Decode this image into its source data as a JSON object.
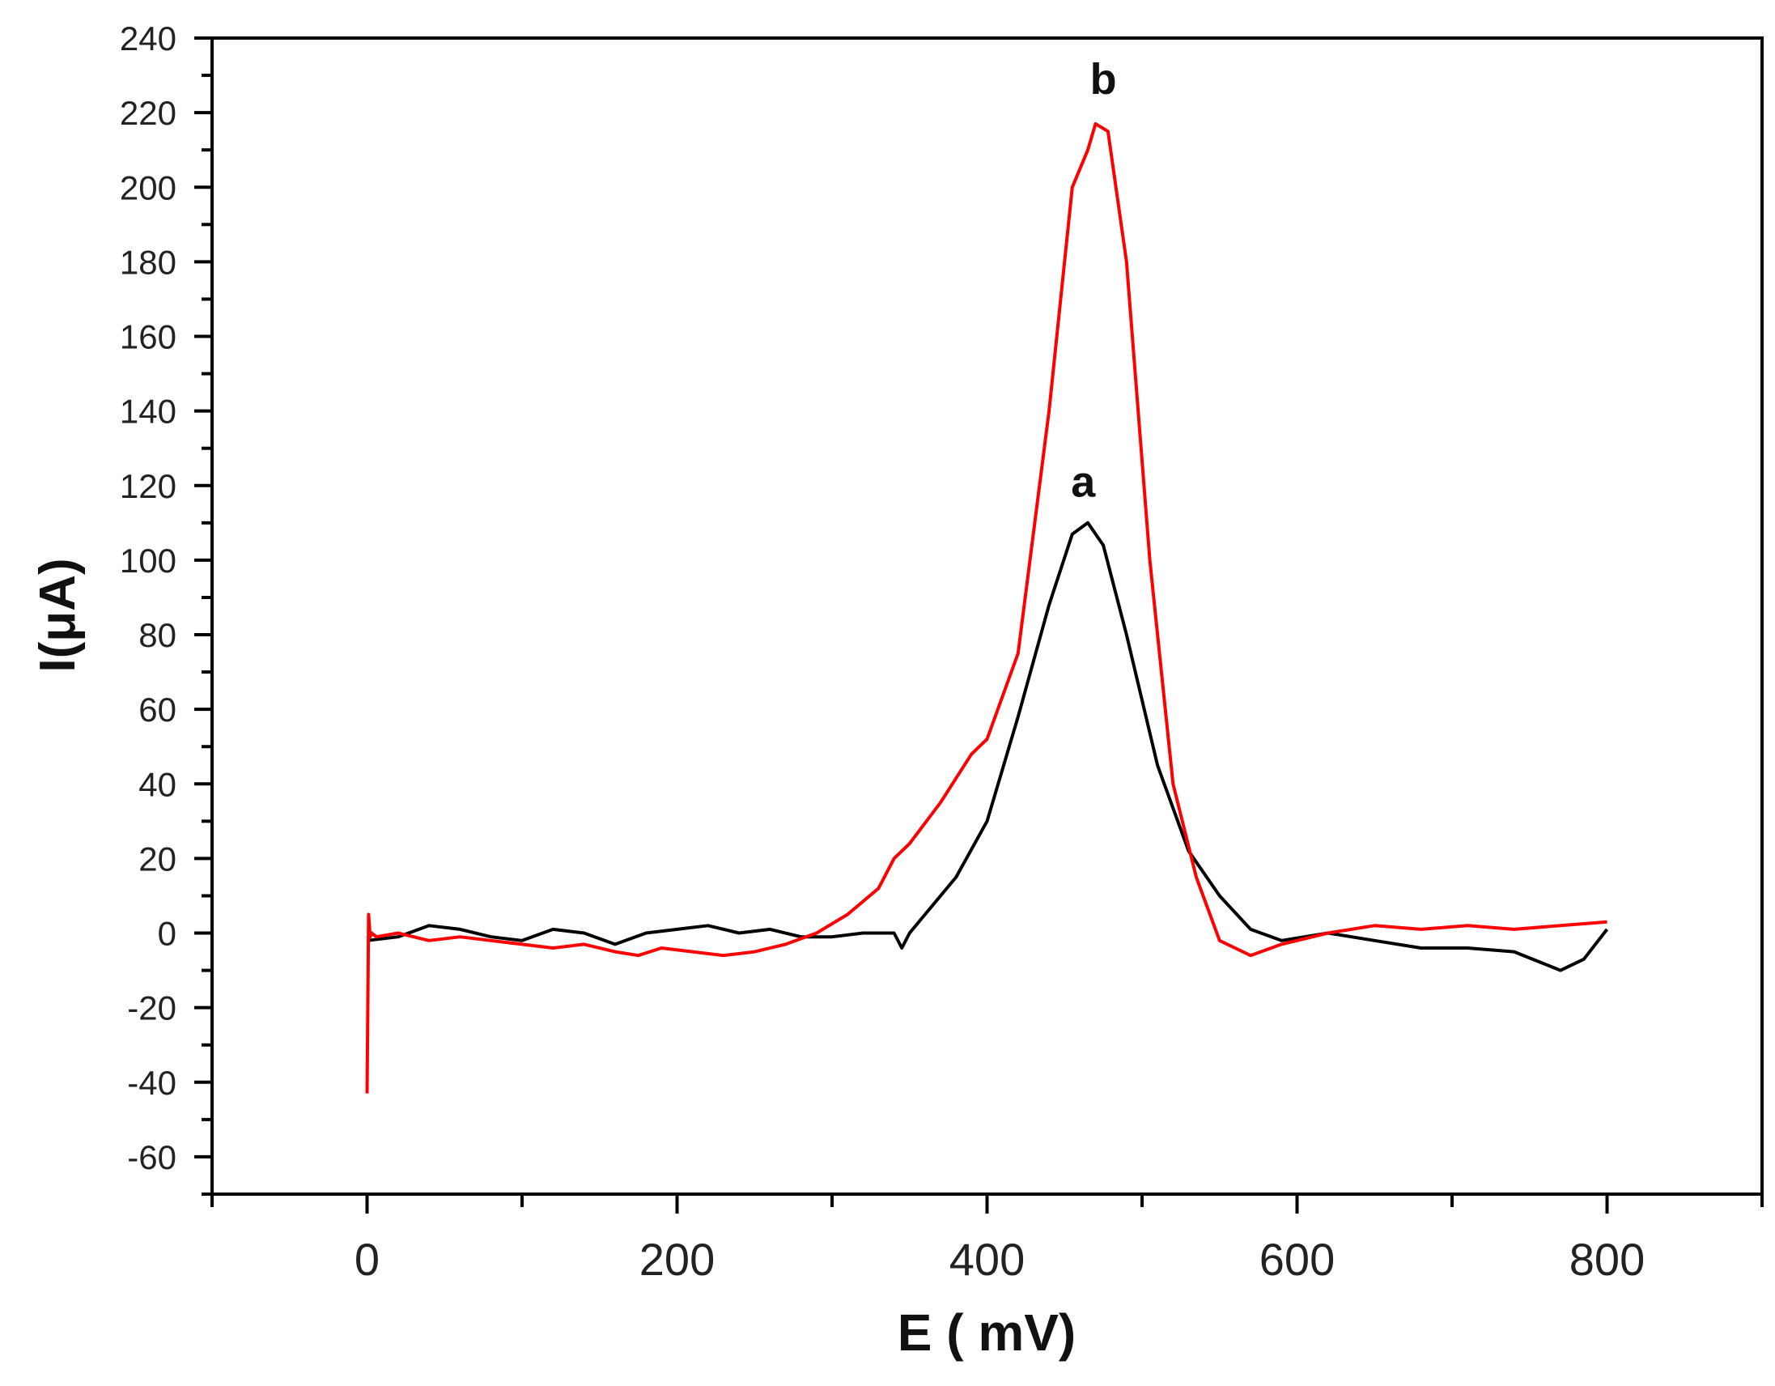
{
  "chart_data": {
    "type": "line",
    "title": "",
    "xlabel": "E ( mV)",
    "ylabel": "I(μA)",
    "xlim": [
      -100,
      900
    ],
    "ylim": [
      -70,
      240
    ],
    "xticks": [
      0,
      200,
      400,
      600,
      800
    ],
    "yticks": [
      -60,
      -40,
      -20,
      0,
      20,
      40,
      60,
      80,
      100,
      120,
      140,
      160,
      180,
      200,
      220,
      240
    ],
    "grid": false,
    "legend": "none",
    "series": [
      {
        "name": "a",
        "color": "#000000",
        "x": [
          0,
          20,
          40,
          60,
          80,
          100,
          120,
          140,
          160,
          180,
          200,
          220,
          240,
          260,
          280,
          300,
          320,
          340,
          345,
          350,
          360,
          380,
          400,
          420,
          440,
          455,
          465,
          475,
          490,
          510,
          530,
          550,
          570,
          590,
          620,
          650,
          680,
          710,
          740,
          770,
          785,
          800
        ],
        "y": [
          -2,
          -1,
          2,
          1,
          -1,
          -2,
          1,
          0,
          -3,
          0,
          1,
          2,
          0,
          1,
          -1,
          -1,
          0,
          0,
          -4,
          0,
          5,
          15,
          30,
          58,
          88,
          107,
          110,
          104,
          80,
          45,
          22,
          10,
          1,
          -2,
          0,
          -2,
          -4,
          -4,
          -5,
          -10,
          -7,
          1
        ]
      },
      {
        "name": "b",
        "color": "#ff0000",
        "x": [
          0,
          1,
          2,
          3,
          6,
          20,
          40,
          60,
          80,
          100,
          120,
          140,
          160,
          175,
          190,
          210,
          230,
          250,
          270,
          290,
          310,
          330,
          340,
          350,
          370,
          390,
          400,
          420,
          440,
          455,
          465,
          470,
          478,
          490,
          505,
          520,
          535,
          550,
          570,
          590,
          620,
          650,
          680,
          710,
          740,
          770,
          800
        ],
        "y": [
          -43,
          5,
          -1,
          0,
          -1,
          0,
          -2,
          -1,
          -2,
          -3,
          -4,
          -3,
          -5,
          -6,
          -4,
          -5,
          -6,
          -5,
          -3,
          0,
          5,
          12,
          20,
          24,
          35,
          48,
          52,
          75,
          140,
          200,
          210,
          217,
          215,
          180,
          100,
          40,
          15,
          -2,
          -6,
          -3,
          0,
          2,
          1,
          2,
          1,
          2,
          3
        ]
      }
    ],
    "annotations": [
      {
        "text": "a",
        "x": 462,
        "y": 117
      },
      {
        "text": "b",
        "x": 475,
        "y": 225
      }
    ]
  }
}
